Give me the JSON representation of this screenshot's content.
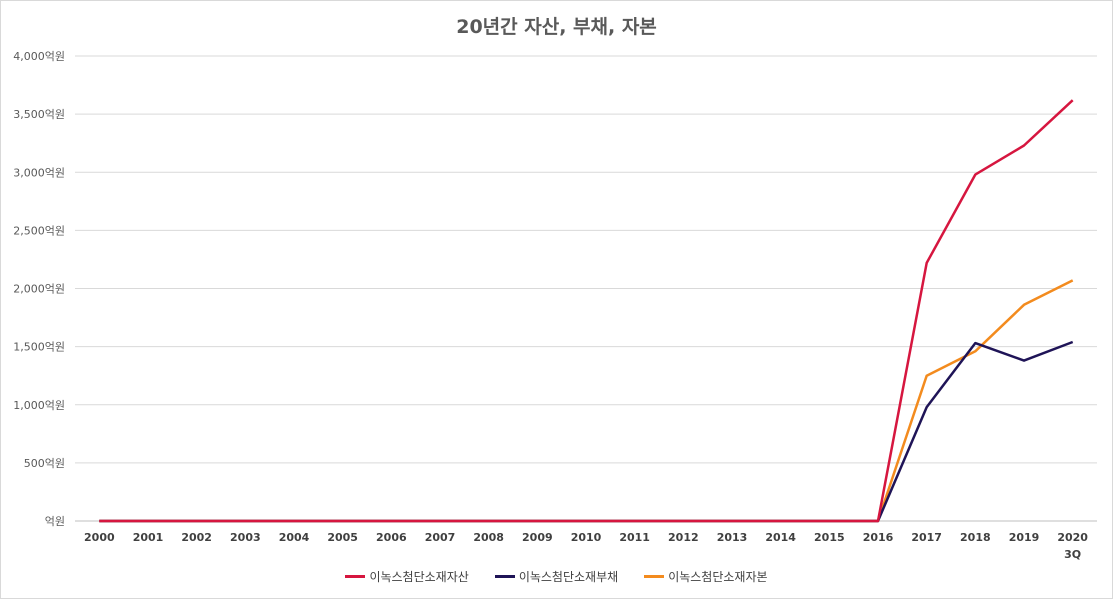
{
  "chart_data": {
    "type": "line",
    "title": "20년간 자산, 부채, 자본",
    "categories": [
      "2000",
      "2001",
      "2002",
      "2003",
      "2004",
      "2005",
      "2006",
      "2007",
      "2008",
      "2009",
      "2010",
      "2011",
      "2012",
      "2013",
      "2014",
      "2015",
      "2016",
      "2017",
      "2018",
      "2019",
      "2020\n3Q"
    ],
    "y_ticks": [
      "억원",
      "500억원",
      "1,000억원",
      "1,500억원",
      "2,000억원",
      "2,500억원",
      "3,000억원",
      "3,500억원",
      "4,000억원"
    ],
    "ylim": [
      0,
      4000
    ],
    "grid": true,
    "legend_position": "bottom",
    "series": [
      {
        "name": "이녹스첨단소재자산",
        "color": "#d6163f",
        "values": [
          0,
          0,
          0,
          0,
          0,
          0,
          0,
          0,
          0,
          0,
          0,
          0,
          0,
          0,
          0,
          0,
          0,
          2220,
          2980,
          3230,
          3620
        ]
      },
      {
        "name": "이녹스첨단소재부채",
        "color": "#1f1457",
        "values": [
          0,
          0,
          0,
          0,
          0,
          0,
          0,
          0,
          0,
          0,
          0,
          0,
          0,
          0,
          0,
          0,
          0,
          980,
          1530,
          1380,
          1540
        ]
      },
      {
        "name": "이녹스첨단소재자본",
        "color": "#f38b1e",
        "values": [
          0,
          0,
          0,
          0,
          0,
          0,
          0,
          0,
          0,
          0,
          0,
          0,
          0,
          0,
          0,
          0,
          0,
          1250,
          1460,
          1860,
          2070
        ]
      }
    ]
  }
}
